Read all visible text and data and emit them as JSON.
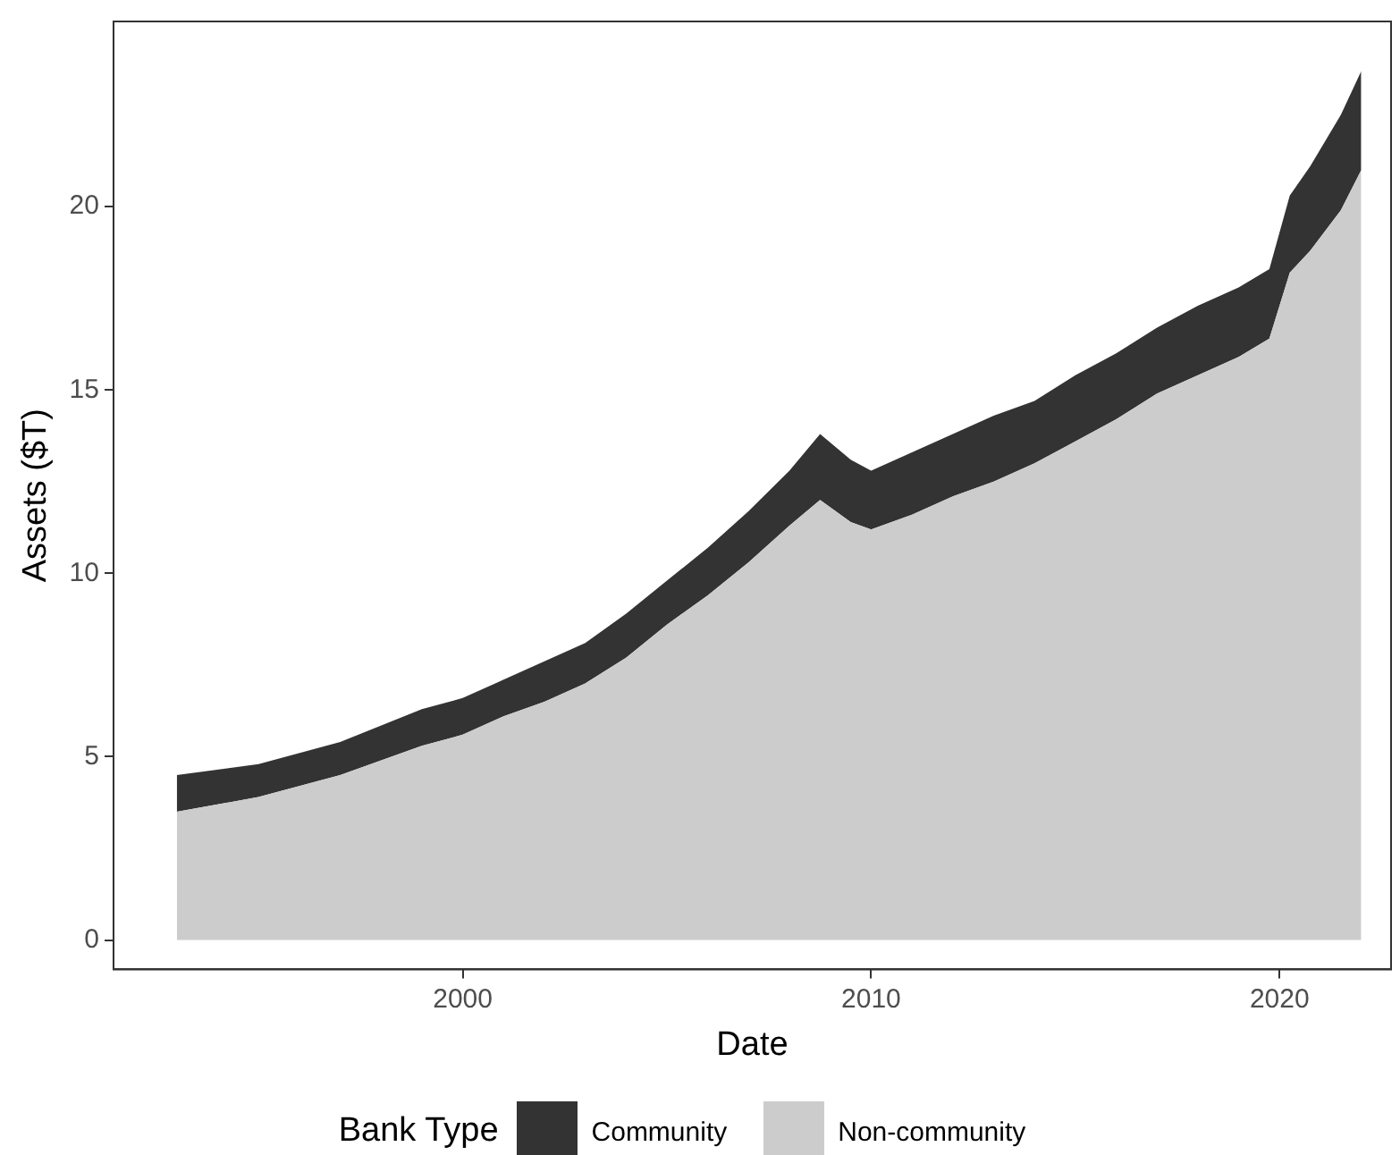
{
  "chart_data": {
    "type": "area",
    "stacked": true,
    "xlabel": "Date",
    "ylabel": "Assets ($T)",
    "legend_title": "Bank Type",
    "legend": "bottom",
    "grid": false,
    "marker": "none",
    "x": [
      1993,
      1995,
      1997,
      1999,
      2000,
      2001,
      2002,
      2003,
      2004,
      2005,
      2006,
      2007,
      2008,
      2008.75,
      2009.5,
      2010,
      2011,
      2012,
      2013,
      2014,
      2015,
      2016,
      2017,
      2018,
      2019,
      2019.75,
      2020.25,
      2020.75,
      2021.5,
      2022
    ],
    "series": [
      {
        "name": "Non-community",
        "color": "#cccccc",
        "values": [
          3.5,
          3.9,
          4.5,
          5.3,
          5.6,
          6.1,
          6.5,
          7.0,
          7.7,
          8.6,
          9.4,
          10.3,
          11.3,
          12.0,
          11.4,
          11.2,
          11.6,
          12.1,
          12.5,
          13.0,
          13.6,
          14.2,
          14.9,
          15.4,
          15.9,
          16.4,
          18.2,
          18.8,
          19.9,
          21.0
        ]
      },
      {
        "name": "Community",
        "color": "#333333",
        "values": [
          1.0,
          0.9,
          0.9,
          1.0,
          1.0,
          1.0,
          1.1,
          1.1,
          1.2,
          1.2,
          1.3,
          1.4,
          1.5,
          1.8,
          1.7,
          1.6,
          1.7,
          1.7,
          1.8,
          1.7,
          1.8,
          1.8,
          1.8,
          1.9,
          1.9,
          1.9,
          2.1,
          2.3,
          2.6,
          2.7
        ]
      }
    ],
    "xlim": [
      1991.45,
      2022.73
    ],
    "xticks": [
      2000,
      2010,
      2020
    ],
    "ylim": [
      -0.8,
      25.05
    ],
    "yticks": [
      0,
      5,
      10,
      15,
      20
    ]
  }
}
